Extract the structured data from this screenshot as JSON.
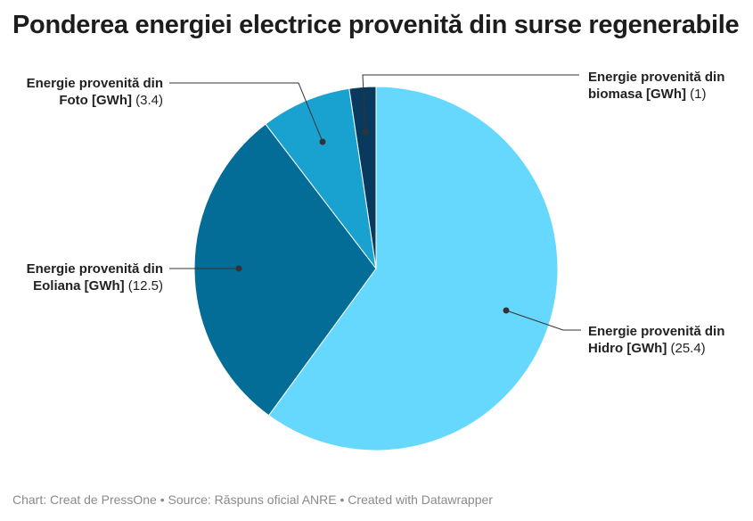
{
  "chart_data": {
    "type": "pie",
    "title": "Ponderea energiei electrice provenită din surse regenerabile",
    "categories": [
      "Energie provenită din Hidro [GWh]",
      "Energie provenită din Eoliana [GWh]",
      "Energie provenită din Foto [GWh]",
      "Energie provenită din biomasa [GWh]"
    ],
    "values": [
      25.4,
      12.5,
      3.4,
      1
    ],
    "colors": [
      "#66d7fd",
      "#046d97",
      "#19a2cf",
      "#093a5e"
    ],
    "start_angle": "top",
    "direction": "clockwise"
  },
  "footer": "Chart: Creat de PressOne • Source: Răspuns oficial ANRE • Created with Datawrapper"
}
